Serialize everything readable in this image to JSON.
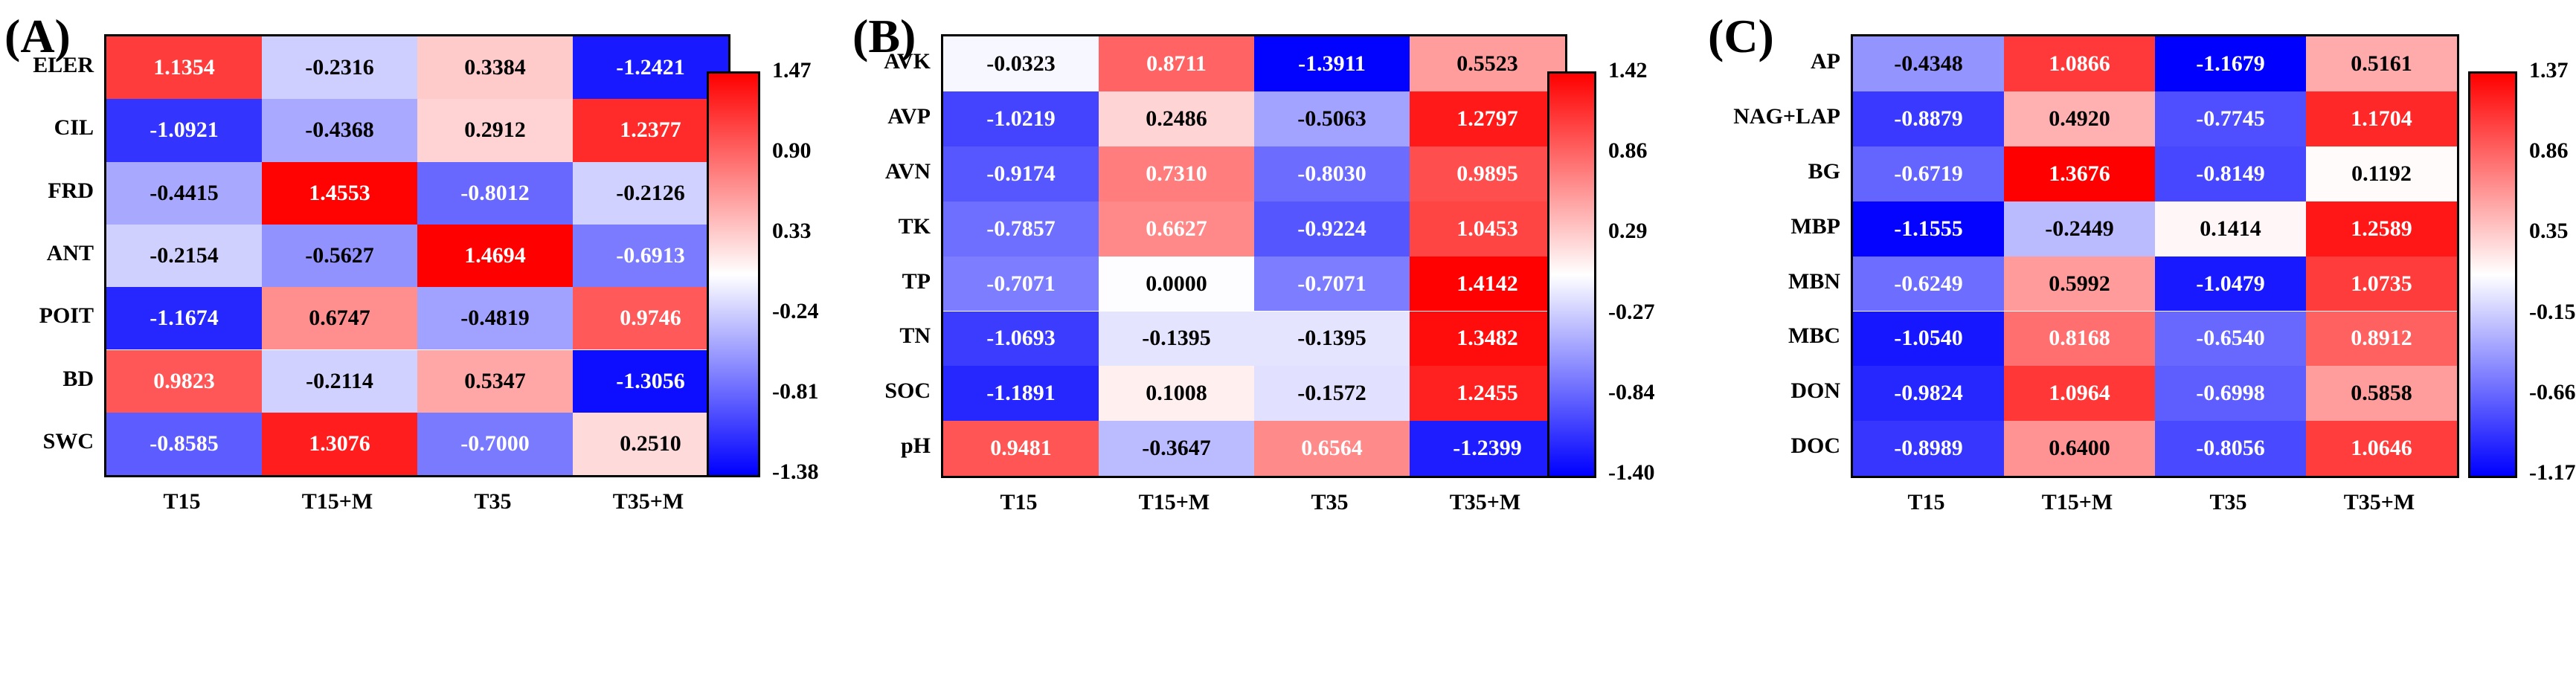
{
  "colors": {
    "low": "#0000ff",
    "mid": "#ffffff",
    "high": "#ff0000"
  },
  "columns": [
    "T15",
    "T15+M",
    "T35",
    "T35+M"
  ],
  "chart_data": [
    {
      "type": "heatmap",
      "label": "(A)",
      "rows": [
        "ELER",
        "CIL",
        "FRD",
        "ANT",
        "POIT",
        "BD",
        "SWC"
      ],
      "columns": [
        "T15",
        "T15+M",
        "T35",
        "T35+M"
      ],
      "values": [
        [
          1.1354,
          -0.2316,
          0.3384,
          -1.2421
        ],
        [
          -1.0921,
          -0.4368,
          0.2912,
          1.2377
        ],
        [
          -0.4415,
          1.4553,
          -0.8012,
          -0.2126
        ],
        [
          -0.2154,
          -0.5627,
          1.4694,
          -0.6913
        ],
        [
          -1.1674,
          0.6747,
          -0.4819,
          0.9746
        ],
        [
          0.9823,
          -0.2114,
          0.5347,
          -1.3056
        ],
        [
          -0.8585,
          1.3076,
          -0.7,
          0.251
        ]
      ],
      "labels": [
        [
          "1.1354",
          "-0.2316",
          "0.3384",
          "-1.2421"
        ],
        [
          "-1.0921",
          "-0.4368",
          "0.2912",
          "1.2377"
        ],
        [
          "-0.4415",
          "1.4553",
          "-0.8012",
          "-0.2126"
        ],
        [
          "-0.2154",
          "-0.5627",
          "1.4694",
          "-0.6913"
        ],
        [
          "-1.1674",
          "0.6747",
          "-0.4819",
          "0.9746"
        ],
        [
          "0.9823",
          "-0.2114",
          "0.5347",
          "-1.3056"
        ],
        [
          "-0.8585",
          "1.3076",
          "-0.7000",
          "0.2510"
        ]
      ],
      "colorbar": {
        "range": [
          -1.38,
          1.47
        ],
        "ticks": [
          "1.47",
          "0.90",
          "0.33",
          "-0.24",
          "-0.81",
          "-1.38"
        ]
      }
    },
    {
      "type": "heatmap",
      "label": "(B)",
      "rows": [
        "AVK",
        "AVP",
        "AVN",
        "TK",
        "TP",
        "TN",
        "SOC",
        "pH"
      ],
      "columns": [
        "T15",
        "T15+M",
        "T35",
        "T35+M"
      ],
      "values": [
        [
          -0.0323,
          0.8711,
          -1.3911,
          0.5523
        ],
        [
          -1.0219,
          0.2486,
          -0.5063,
          1.2797
        ],
        [
          -0.9174,
          0.731,
          -0.803,
          0.9895
        ],
        [
          -0.7857,
          0.6627,
          -0.9224,
          1.0453
        ],
        [
          -0.7071,
          0.0,
          -0.7071,
          1.4142
        ],
        [
          -1.0693,
          -0.1395,
          -0.1395,
          1.3482
        ],
        [
          -1.1891,
          0.1008,
          -0.1572,
          1.2455
        ],
        [
          0.9481,
          -0.3647,
          0.6564,
          -1.2399
        ]
      ],
      "labels": [
        [
          "-0.0323",
          "0.8711",
          "-1.3911",
          "0.5523"
        ],
        [
          "-1.0219",
          "0.2486",
          "-0.5063",
          "1.2797"
        ],
        [
          "-0.9174",
          "0.7310",
          "-0.8030",
          "0.9895"
        ],
        [
          "-0.7857",
          "0.6627",
          "-0.9224",
          "1.0453"
        ],
        [
          "-0.7071",
          "0.0000",
          "-0.7071",
          "1.4142"
        ],
        [
          "-1.0693",
          "-0.1395",
          "-0.1395",
          "1.3482"
        ],
        [
          "-1.1891",
          "0.1008",
          "-0.1572",
          "1.2455"
        ],
        [
          "0.9481",
          "-0.3647",
          "0.6564",
          "-1.2399"
        ]
      ],
      "colorbar": {
        "range": [
          -1.4,
          1.42
        ],
        "ticks": [
          "1.42",
          "0.86",
          "0.29",
          "-0.27",
          "-0.84",
          "-1.40"
        ]
      }
    },
    {
      "type": "heatmap",
      "label": "(C)",
      "rows": [
        "AP",
        "NAG+LAP",
        "BG",
        "MBP",
        "MBN",
        "MBC",
        "DON",
        "DOC"
      ],
      "columns": [
        "T15",
        "T15+M",
        "T35",
        "T35+M"
      ],
      "values": [
        [
          -0.4348,
          1.0866,
          -1.1679,
          0.5161
        ],
        [
          -0.8879,
          0.492,
          -0.7745,
          1.1704
        ],
        [
          -0.6719,
          1.3676,
          -0.8149,
          0.1192
        ],
        [
          -1.1555,
          -0.2449,
          0.1414,
          1.2589
        ],
        [
          -0.6249,
          0.5992,
          -1.0479,
          1.0735
        ],
        [
          -1.054,
          0.8168,
          -0.654,
          0.8912
        ],
        [
          -0.9824,
          1.0964,
          -0.6998,
          0.5858
        ],
        [
          -0.8989,
          0.64,
          -0.8056,
          1.0646
        ]
      ],
      "labels": [
        [
          "-0.4348",
          "1.0866",
          "-1.1679",
          "0.5161"
        ],
        [
          "-0.8879",
          "0.4920",
          "-0.7745",
          "1.1704"
        ],
        [
          "-0.6719",
          "1.3676",
          "-0.8149",
          "0.1192"
        ],
        [
          "-1.1555",
          "-0.2449",
          "0.1414",
          "1.2589"
        ],
        [
          "-0.6249",
          "0.5992",
          "-1.0479",
          "1.0735"
        ],
        [
          "-1.0540",
          "0.8168",
          "-0.6540",
          "0.8912"
        ],
        [
          "-0.9824",
          "1.0964",
          "-0.6998",
          "0.5858"
        ],
        [
          "-0.8989",
          "0.6400",
          "-0.8056",
          "1.0646"
        ]
      ],
      "colorbar": {
        "range": [
          -1.17,
          1.37
        ],
        "ticks": [
          "1.37",
          "0.86",
          "0.35",
          "-0.15",
          "-0.66",
          "-1.17"
        ]
      }
    }
  ]
}
